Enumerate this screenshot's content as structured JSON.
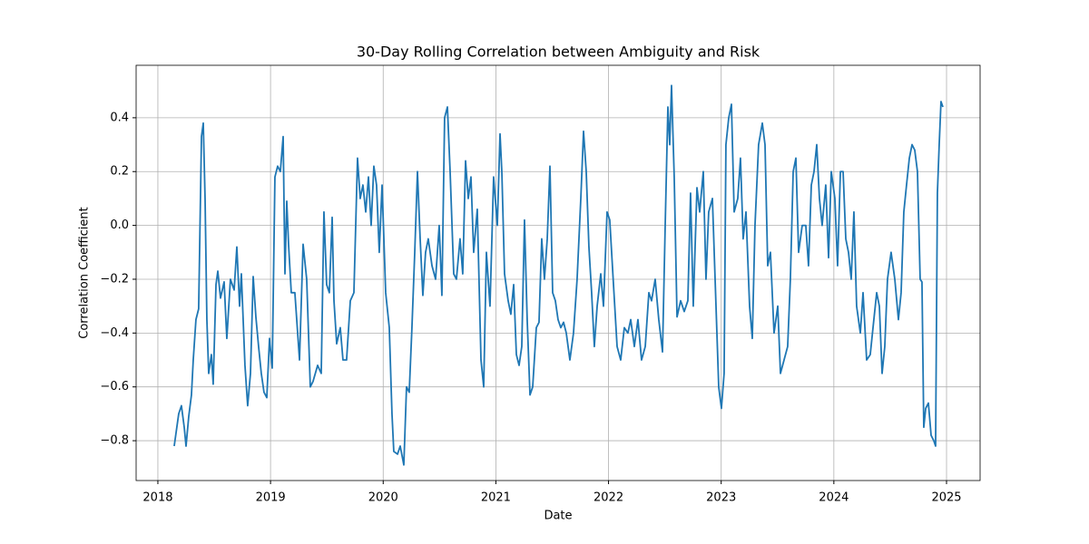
{
  "chart_data": {
    "type": "line",
    "title": "30-Day Rolling Correlation between Ambiguity and Risk",
    "xlabel": "Date",
    "ylabel": "Correlation Coefficient",
    "color": "#1f77b4",
    "grid": true,
    "xlim": [
      2017.807,
      2025.298
    ],
    "ylim": [
      -0.948,
      0.595
    ],
    "xticks": [
      2018,
      2019,
      2020,
      2021,
      2022,
      2023,
      2024,
      2025
    ],
    "yticks": [
      {
        "value": -0.8,
        "label": "−0.8"
      },
      {
        "value": -0.6,
        "label": "−0.6"
      },
      {
        "value": -0.4,
        "label": "−0.4"
      },
      {
        "value": -0.2,
        "label": "−0.2"
      },
      {
        "value": 0.0,
        "label": "0.0"
      },
      {
        "value": 0.2,
        "label": "0.2"
      },
      {
        "value": 0.4,
        "label": "0.4"
      }
    ],
    "x": [
      2018.145,
      2018.185,
      2018.209,
      2018.234,
      2018.25,
      2018.274,
      2018.298,
      2018.314,
      2018.338,
      2018.362,
      2018.387,
      2018.403,
      2018.419,
      2018.435,
      2018.451,
      2018.475,
      2018.491,
      2018.516,
      2018.532,
      2018.556,
      2018.588,
      2018.612,
      2018.644,
      2018.677,
      2018.701,
      2018.725,
      2018.741,
      2018.773,
      2018.797,
      2018.822,
      2018.846,
      2018.87,
      2018.894,
      2018.918,
      2018.942,
      2018.967,
      2018.991,
      2019.015,
      2019.039,
      2019.063,
      2019.087,
      2019.112,
      2019.128,
      2019.144,
      2019.16,
      2019.184,
      2019.216,
      2019.257,
      2019.289,
      2019.321,
      2019.353,
      2019.377,
      2019.418,
      2019.45,
      2019.474,
      2019.498,
      2019.522,
      2019.547,
      2019.563,
      2019.587,
      2019.619,
      2019.643,
      2019.675,
      2019.708,
      2019.74,
      2019.772,
      2019.796,
      2019.82,
      2019.845,
      2019.869,
      2019.893,
      2019.917,
      2019.941,
      2019.965,
      2019.99,
      2020.022,
      2020.054,
      2020.078,
      2020.094,
      2020.127,
      2020.151,
      2020.183,
      2020.207,
      2020.231,
      2020.255,
      2020.28,
      2020.304,
      2020.328,
      2020.352,
      2020.376,
      2020.4,
      2020.433,
      2020.465,
      2020.497,
      2020.521,
      2020.545,
      2020.57,
      2020.594,
      2020.626,
      2020.65,
      2020.682,
      2020.706,
      2020.731,
      2020.755,
      2020.779,
      2020.803,
      2020.835,
      2020.868,
      2020.892,
      2020.916,
      2020.948,
      2020.98,
      2021.013,
      2021.037,
      2021.053,
      2021.077,
      2021.109,
      2021.133,
      2021.158,
      2021.182,
      2021.206,
      2021.23,
      2021.254,
      2021.278,
      2021.303,
      2021.327,
      2021.359,
      2021.383,
      2021.407,
      2021.431,
      2021.456,
      2021.48,
      2021.504,
      2021.528,
      2021.552,
      2021.576,
      2021.601,
      2021.625,
      2021.657,
      2021.689,
      2021.721,
      2021.754,
      2021.778,
      2021.802,
      2021.826,
      2021.85,
      2021.874,
      2021.899,
      2021.931,
      2021.955,
      2021.987,
      2022.011,
      2022.044,
      2022.076,
      2022.108,
      2022.14,
      2022.172,
      2022.197,
      2022.229,
      2022.261,
      2022.293,
      2022.326,
      2022.358,
      2022.382,
      2022.414,
      2022.446,
      2022.479,
      2022.503,
      2022.527,
      2022.543,
      2022.559,
      2022.583,
      2022.608,
      2022.64,
      2022.672,
      2022.704,
      2022.728,
      2022.752,
      2022.785,
      2022.809,
      2022.841,
      2022.865,
      2022.889,
      2022.922,
      2022.946,
      2022.978,
      2023.002,
      2023.026,
      2023.042,
      2023.067,
      2023.091,
      2023.115,
      2023.147,
      2023.171,
      2023.195,
      2023.22,
      2023.252,
      2023.276,
      2023.3,
      2023.332,
      2023.365,
      2023.389,
      2023.413,
      2023.437,
      2023.469,
      2023.502,
      2023.526,
      2023.558,
      2023.59,
      2023.614,
      2023.639,
      2023.663,
      2023.687,
      2023.719,
      2023.751,
      2023.775,
      2023.8,
      2023.824,
      2023.848,
      2023.872,
      2023.896,
      2023.928,
      2023.953,
      2023.977,
      2024.009,
      2024.033,
      2024.058,
      2024.082,
      2024.106,
      2024.13,
      2024.154,
      2024.178,
      2024.202,
      2024.235,
      2024.259,
      2024.291,
      2024.323,
      2024.355,
      2024.38,
      2024.404,
      2024.428,
      2024.452,
      2024.476,
      2024.508,
      2024.541,
      2024.573,
      2024.597,
      2024.621,
      2024.645,
      2024.67,
      2024.694,
      2024.718,
      2024.742,
      2024.766,
      2024.782,
      2024.798,
      2024.815,
      2024.839,
      2024.863,
      2024.887,
      2024.903,
      2024.919,
      2024.935,
      2024.951,
      2024.968
    ],
    "values": [
      -0.82,
      -0.7,
      -0.67,
      -0.75,
      -0.82,
      -0.71,
      -0.63,
      -0.5,
      -0.35,
      -0.31,
      0.33,
      0.38,
      0.1,
      -0.35,
      -0.55,
      -0.48,
      -0.59,
      -0.22,
      -0.17,
      -0.27,
      -0.21,
      -0.42,
      -0.2,
      -0.24,
      -0.08,
      -0.3,
      -0.18,
      -0.52,
      -0.67,
      -0.55,
      -0.19,
      -0.34,
      -0.45,
      -0.55,
      -0.62,
      -0.64,
      -0.42,
      -0.53,
      0.18,
      0.22,
      0.2,
      0.33,
      -0.18,
      0.09,
      -0.07,
      -0.25,
      -0.25,
      -0.5,
      -0.07,
      -0.2,
      -0.6,
      -0.58,
      -0.52,
      -0.55,
      0.05,
      -0.22,
      -0.25,
      0.03,
      -0.28,
      -0.44,
      -0.38,
      -0.5,
      -0.5,
      -0.28,
      -0.25,
      0.25,
      0.1,
      0.15,
      0.05,
      0.18,
      0.0,
      0.22,
      0.15,
      -0.1,
      0.15,
      -0.25,
      -0.38,
      -0.7,
      -0.84,
      -0.85,
      -0.82,
      -0.89,
      -0.6,
      -0.62,
      -0.38,
      -0.1,
      0.2,
      -0.05,
      -0.26,
      -0.1,
      -0.05,
      -0.15,
      -0.2,
      0.0,
      -0.26,
      0.4,
      0.44,
      0.2,
      -0.18,
      -0.2,
      -0.05,
      -0.18,
      0.24,
      0.1,
      0.18,
      -0.1,
      0.06,
      -0.5,
      -0.6,
      -0.1,
      -0.3,
      0.18,
      0.0,
      0.34,
      0.2,
      -0.18,
      -0.28,
      -0.33,
      -0.22,
      -0.48,
      -0.52,
      -0.45,
      0.02,
      -0.35,
      -0.63,
      -0.6,
      -0.38,
      -0.36,
      -0.05,
      -0.2,
      -0.05,
      0.22,
      -0.25,
      -0.28,
      -0.35,
      -0.38,
      -0.36,
      -0.4,
      -0.5,
      -0.4,
      -0.2,
      0.1,
      0.35,
      0.2,
      -0.08,
      -0.25,
      -0.45,
      -0.3,
      -0.18,
      -0.3,
      0.05,
      0.02,
      -0.22,
      -0.45,
      -0.5,
      -0.38,
      -0.4,
      -0.35,
      -0.45,
      -0.35,
      -0.5,
      -0.45,
      -0.25,
      -0.28,
      -0.2,
      -0.35,
      -0.47,
      0.0,
      0.44,
      0.3,
      0.52,
      0.18,
      -0.34,
      -0.28,
      -0.32,
      -0.28,
      0.12,
      -0.3,
      0.14,
      0.05,
      0.2,
      -0.2,
      0.05,
      0.1,
      -0.2,
      -0.6,
      -0.68,
      -0.55,
      0.3,
      0.4,
      0.45,
      0.05,
      0.1,
      0.25,
      -0.05,
      0.05,
      -0.3,
      -0.42,
      0.0,
      0.3,
      0.38,
      0.3,
      -0.15,
      -0.1,
      -0.4,
      -0.3,
      -0.55,
      -0.5,
      -0.45,
      -0.2,
      0.2,
      0.25,
      -0.1,
      0.0,
      0.0,
      -0.15,
      0.15,
      0.2,
      0.3,
      0.1,
      0.0,
      0.15,
      -0.12,
      0.2,
      0.1,
      -0.15,
      0.2,
      0.2,
      -0.05,
      -0.1,
      -0.2,
      0.05,
      -0.3,
      -0.4,
      -0.25,
      -0.5,
      -0.48,
      -0.35,
      -0.25,
      -0.3,
      -0.55,
      -0.45,
      -0.2,
      -0.1,
      -0.2,
      -0.35,
      -0.25,
      0.05,
      0.15,
      0.25,
      0.3,
      0.28,
      0.2,
      -0.2,
      -0.21,
      -0.75,
      -0.68,
      -0.66,
      -0.78,
      -0.8,
      -0.82,
      0.12,
      0.3,
      0.46,
      0.44
    ]
  }
}
